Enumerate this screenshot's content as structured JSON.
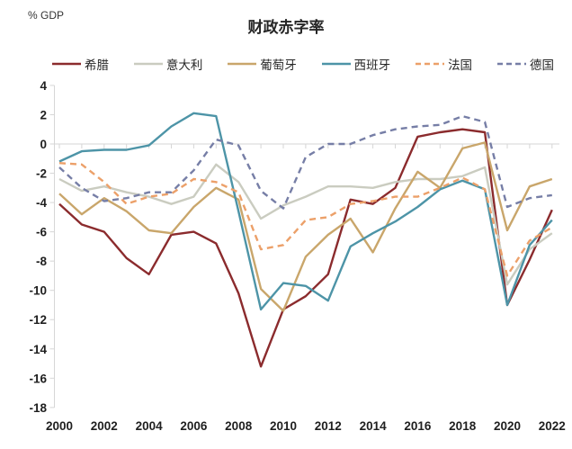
{
  "chart": {
    "unit_label": "% GDP",
    "title": "财政赤字率"
  },
  "chart_data": {
    "type": "line",
    "title": "财政赤字率",
    "ylabel_unit": "% GDP",
    "xlabel": "",
    "x": [
      2000,
      2001,
      2002,
      2003,
      2004,
      2005,
      2006,
      2007,
      2008,
      2009,
      2010,
      2011,
      2012,
      2013,
      2014,
      2015,
      2016,
      2017,
      2018,
      2019,
      2020,
      2021,
      2022
    ],
    "x_tick_labels": [
      "2000",
      "2002",
      "2004",
      "2006",
      "2008",
      "2010",
      "2012",
      "2014",
      "2016",
      "2018",
      "2020",
      "2022"
    ],
    "y_ticks": [
      4,
      2,
      0,
      -2,
      -4,
      -6,
      -8,
      -10,
      -12,
      -14,
      -16,
      -18
    ],
    "ylim": [
      -18,
      4
    ],
    "grid": "zero-baseline-only",
    "legend_position": "top",
    "axis_color": "#d6d6d6",
    "series": [
      {
        "id": "greece",
        "name": "希腊",
        "color": "#8B2B2D",
        "dashed": false,
        "values": [
          -4.1,
          -5.5,
          -6.0,
          -7.8,
          -8.9,
          -6.2,
          -6.0,
          -6.8,
          -10.2,
          -15.2,
          -11.3,
          -10.4,
          -8.9,
          -3.8,
          -4.1,
          -3.0,
          0.5,
          0.8,
          1.0,
          0.8,
          -11.0,
          -7.9,
          -4.5
        ]
      },
      {
        "id": "italy",
        "name": "意大利",
        "color": "#CACCC0",
        "dashed": false,
        "values": [
          -2.4,
          -3.2,
          -2.9,
          -3.3,
          -3.6,
          -4.1,
          -3.6,
          -1.4,
          -2.6,
          -5.1,
          -4.2,
          -3.6,
          -2.9,
          -2.9,
          -3.0,
          -2.6,
          -2.4,
          -2.4,
          -2.2,
          -1.6,
          -9.6,
          -7.2,
          -6.1
        ]
      },
      {
        "id": "portugal",
        "name": "葡萄牙",
        "color": "#C9A66B",
        "dashed": false,
        "values": [
          -3.4,
          -4.8,
          -3.7,
          -4.6,
          -5.9,
          -6.1,
          -4.3,
          -3.0,
          -3.8,
          -9.9,
          -11.4,
          -7.7,
          -6.2,
          -5.1,
          -7.4,
          -4.4,
          -1.9,
          -3.0,
          -0.3,
          0.1,
          -5.9,
          -2.9,
          -2.4
        ]
      },
      {
        "id": "spain",
        "name": "西班牙",
        "color": "#4D94A7",
        "dashed": false,
        "values": [
          -1.2,
          -0.5,
          -0.4,
          -0.4,
          -0.1,
          1.2,
          2.1,
          1.9,
          -4.6,
          -11.3,
          -9.5,
          -9.7,
          -10.7,
          -7.0,
          -6.1,
          -5.3,
          -4.3,
          -3.1,
          -2.5,
          -3.1,
          -11.0,
          -6.9,
          -5.2
        ]
      },
      {
        "id": "france",
        "name": "法国",
        "color": "#ECA069",
        "dashed": true,
        "values": [
          -1.3,
          -1.4,
          -2.6,
          -4.1,
          -3.6,
          -3.4,
          -2.4,
          -2.6,
          -3.3,
          -7.2,
          -6.9,
          -5.2,
          -5.0,
          -4.1,
          -3.9,
          -3.6,
          -3.6,
          -3.0,
          -2.3,
          -3.1,
          -9.0,
          -6.6,
          -5.7
        ]
      },
      {
        "id": "germany",
        "name": "德国",
        "color": "#767EA6",
        "dashed": true,
        "values": [
          -1.6,
          -3.0,
          -3.9,
          -3.7,
          -3.3,
          -3.3,
          -1.8,
          0.3,
          -0.1,
          -3.2,
          -4.4,
          -0.9,
          0.0,
          0.0,
          0.6,
          1.0,
          1.2,
          1.3,
          1.9,
          1.5,
          -4.3,
          -3.7,
          -3.5
        ]
      }
    ]
  }
}
